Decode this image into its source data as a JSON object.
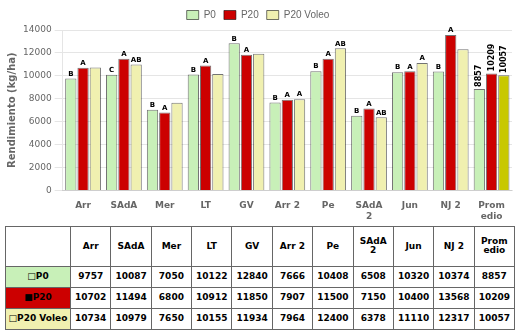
{
  "chart_data": {
    "type": "bar",
    "categories": [
      "Arr",
      "SAdA",
      "Mer",
      "LT",
      "GV",
      "Arr 2",
      "Pe",
      "SAdA\n2",
      "Jun",
      "NJ 2",
      "Prom\nedio"
    ],
    "ylabel": "Rendimiento (kg/ha)",
    "ylim": [
      0,
      14000
    ],
    "yticks": [
      0,
      2000,
      4000,
      6000,
      8000,
      10000,
      12000,
      14000
    ],
    "grid": true,
    "legend": "top",
    "series": [
      {
        "name": "P0",
        "color": "#c8f0b8",
        "values": [
          9757,
          10087,
          7050,
          10122,
          12840,
          7666,
          10408,
          6508,
          10320,
          10374,
          8857
        ],
        "letters": [
          "B",
          "C",
          "B",
          "B",
          "B",
          "B",
          "B",
          "B",
          "B",
          "B",
          null
        ],
        "value_labels": [
          null,
          null,
          null,
          null,
          null,
          null,
          null,
          null,
          null,
          null,
          "8857"
        ]
      },
      {
        "name": "P20",
        "color": "#cc0000",
        "values": [
          10702,
          11494,
          6800,
          10912,
          11850,
          7907,
          11500,
          7150,
          10400,
          13568,
          10209
        ],
        "letters": [
          "A",
          "A",
          "A",
          "A",
          "A",
          "A",
          "A",
          "A",
          "A",
          "A",
          null
        ],
        "value_labels": [
          null,
          null,
          null,
          null,
          null,
          null,
          null,
          null,
          null,
          null,
          "10209"
        ]
      },
      {
        "name": "P20 Voleo",
        "color": "#f0f0b0",
        "colors": [
          "#f0f0b0",
          "#f0f0b0",
          "#f0f0b0",
          "#f0f0b0",
          "#f0f0b0",
          "#f0f0b0",
          "#f0f0b0",
          "#f0f0b0",
          "#f0f0b0",
          "#f0f0b0",
          "#c8c800"
        ],
        "values": [
          10734,
          10979,
          7650,
          10155,
          11934,
          7964,
          12400,
          6378,
          11110,
          12317,
          10057
        ],
        "letters": [
          null,
          "AB",
          null,
          null,
          null,
          "A",
          "AB",
          "AB",
          "A",
          null,
          null
        ],
        "value_labels": [
          null,
          null,
          null,
          null,
          null,
          null,
          null,
          null,
          null,
          null,
          "10057"
        ]
      }
    ],
    "table": {
      "row_labels": [
        "□P0",
        "■P20",
        "□P20 Voleo"
      ]
    }
  }
}
